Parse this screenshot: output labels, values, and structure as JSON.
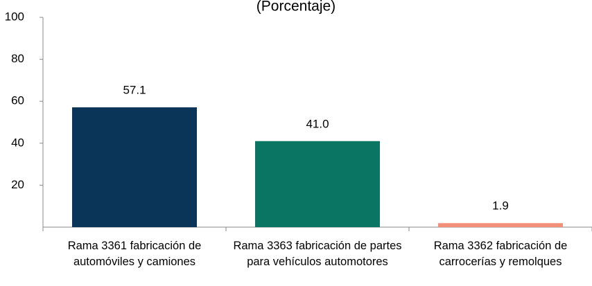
{
  "chart_data": {
    "type": "bar",
    "title": "(Porcentaje)",
    "categories": [
      "Rama 3361 fabricación de automóviles y camiones",
      "Rama 3363 fabricación de partes para vehículos automotores",
      "Rama 3362 fabricación de carrocerías y remolques"
    ],
    "values": [
      57.1,
      41.0,
      1.9
    ],
    "value_labels": [
      "57.1",
      "41.0",
      "1.9"
    ],
    "colors": [
      "#0b3558",
      "#0a7563",
      "#f4907a"
    ],
    "ylim": [
      0,
      100
    ],
    "yticks": [
      20,
      40,
      60,
      80,
      100
    ],
    "grid": false
  }
}
